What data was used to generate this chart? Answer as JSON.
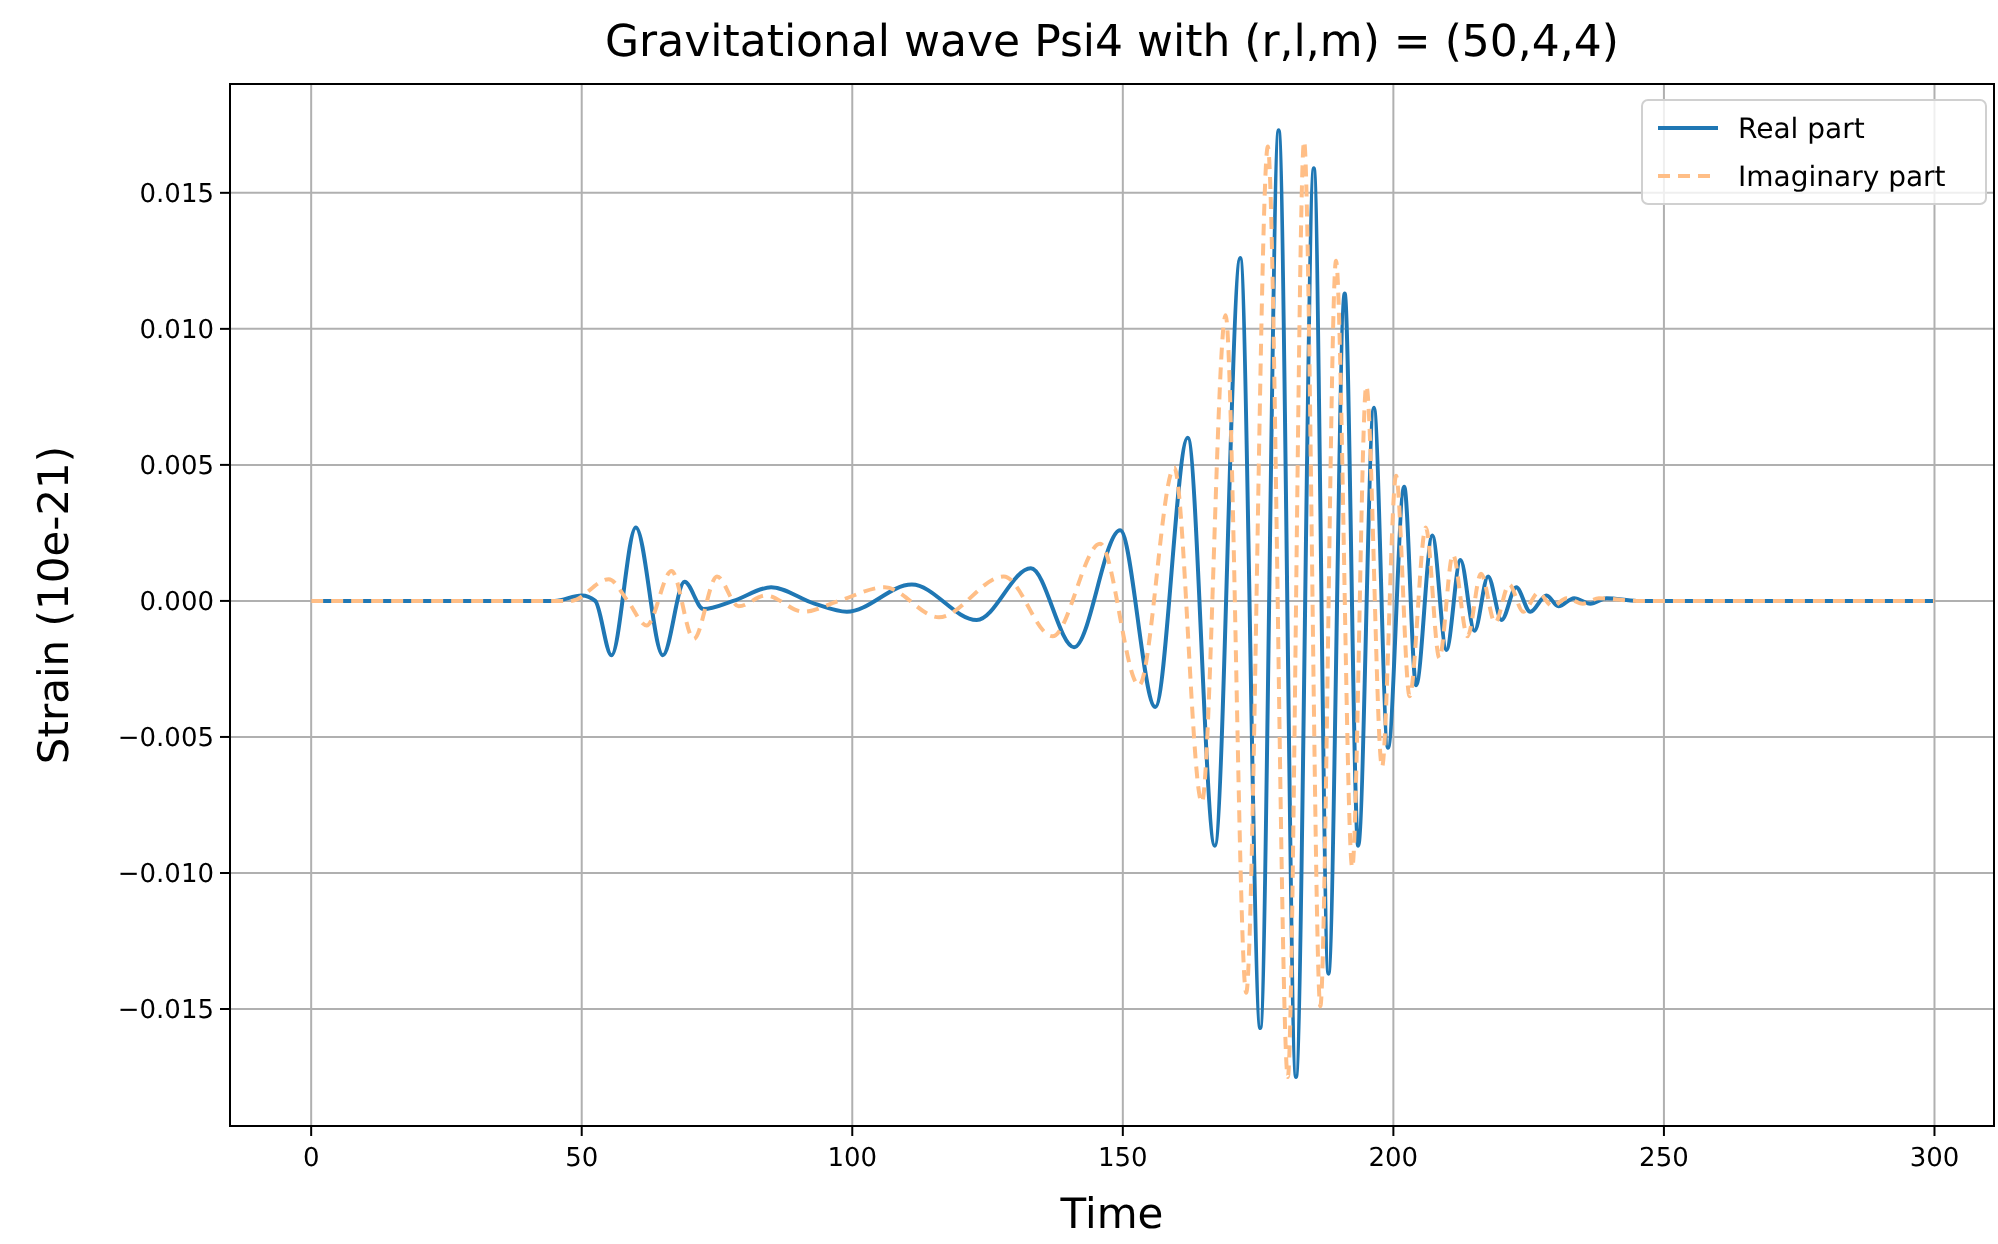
{
  "chart_data": {
    "type": "line",
    "title": "Gravitational wave Psi4 with (r,l,m) = (50,4,4)",
    "xlabel": "Time",
    "ylabel": "Strain (10e-21)",
    "xlim": [
      -15,
      311
    ],
    "ylim": [
      -0.0193,
      0.019
    ],
    "xticks": [
      0,
      50,
      100,
      150,
      200,
      250,
      300
    ],
    "yticks": [
      {
        "value": -0.015,
        "label": "−0.015"
      },
      {
        "value": -0.01,
        "label": "−0.010"
      },
      {
        "value": -0.005,
        "label": "−0.005"
      },
      {
        "value": 0,
        "label": "0.000"
      },
      {
        "value": 0.005,
        "label": "0.005"
      },
      {
        "value": 0.01,
        "label": "0.010"
      },
      {
        "value": 0.015,
        "label": "0.015"
      }
    ],
    "grid": true,
    "legend": "top right",
    "marker": "none",
    "series": [
      {
        "name": "Real part",
        "color": "#1f77b4",
        "line_style": "solid",
        "x": [
          0,
          45,
          50,
          52.5,
          55.5,
          60,
          65,
          69,
          72.5,
          78,
          85,
          93,
          99,
          111,
          123,
          133,
          141,
          149.5,
          156,
          162,
          167,
          171.7,
          175.4,
          178.8,
          182,
          185.3,
          188,
          191,
          193.5,
          196.4,
          199,
          202,
          204.2,
          207.2,
          209.8,
          212.4,
          215,
          217.5,
          220,
          222.7,
          225.3,
          228.3,
          230.5,
          233.4,
          236.4,
          239.4,
          245,
          300
        ],
        "values": [
          0,
          0,
          0.0002,
          0,
          -0.002,
          0.0027,
          -0.002,
          0.0007,
          -0.0003,
          0,
          0.0005,
          -0.0001,
          -0.0004,
          0.0006,
          -0.0007,
          0.0012,
          -0.0017,
          0.0026,
          -0.0039,
          0.006,
          -0.009,
          0.0126,
          -0.0157,
          0.0173,
          -0.0175,
          0.0159,
          -0.0137,
          0.0113,
          -0.009,
          0.0071,
          -0.0054,
          0.0042,
          -0.0031,
          0.0024,
          -0.0018,
          0.0015,
          -0.0011,
          0.0009,
          -0.0007,
          0.0005,
          -0.0004,
          0.0002,
          -0.0002,
          0.0001,
          -0.0001,
          0.0001,
          0,
          0
        ]
      },
      {
        "name": "Imaginary part",
        "color": "#ffbe86",
        "line_style": "dashed",
        "x": [
          0,
          48,
          55,
          58.5,
          62,
          66.6,
          70.7,
          75,
          79,
          84,
          91,
          97.5,
          106,
          116,
          128,
          137,
          145.8,
          153,
          159.5,
          164.6,
          169,
          172.8,
          176.8,
          180.5,
          183.5,
          186.5,
          189.4,
          192.4,
          195,
          197.9,
          200.5,
          203,
          206,
          208.5,
          211,
          213.7,
          216.2,
          218.8,
          221.4,
          224,
          226.8,
          229.4,
          232,
          235,
          238,
          245,
          300
        ],
        "values": [
          0,
          0,
          0.0008,
          0,
          -0.0009,
          0.0011,
          -0.0014,
          0.0009,
          -0.0002,
          0.0002,
          -0.0004,
          0,
          0.0005,
          -0.0006,
          0.0009,
          -0.0013,
          0.0021,
          -0.0031,
          0.0049,
          -0.0074,
          0.0105,
          -0.0144,
          0.0167,
          -0.0175,
          0.0169,
          -0.0149,
          0.0125,
          -0.0098,
          0.0079,
          -0.0061,
          0.0046,
          -0.0035,
          0.0027,
          -0.0021,
          0.0017,
          -0.0013,
          0.001,
          -0.0008,
          0.0006,
          -0.0004,
          0.0003,
          -0.0002,
          0.0001,
          -0.0001,
          0.0001,
          0,
          0
        ]
      }
    ]
  }
}
